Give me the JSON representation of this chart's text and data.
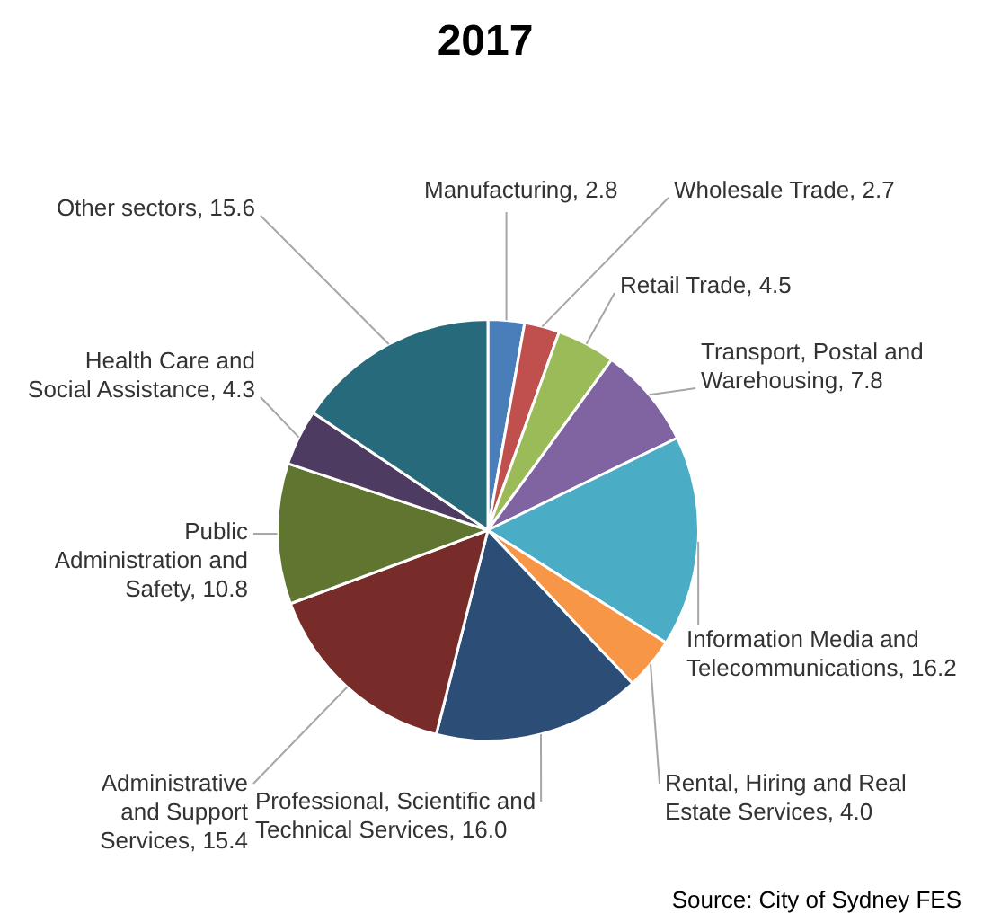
{
  "chart_data": {
    "type": "pie",
    "title": "2017",
    "categories": [
      "Manufacturing",
      "Wholesale Trade",
      "Retail Trade",
      "Transport, Postal and Warehousing",
      "Information Media and Telecommunications",
      "Rental, Hiring and Real Estate Services",
      "Professional, Scientific and Technical Services",
      "Administrative and Support Services",
      "Public Administration and Safety",
      "Health Care and Social Assistance",
      "Other sectors"
    ],
    "values": [
      2.8,
      2.7,
      4.5,
      7.8,
      16.2,
      4.0,
      16.0,
      15.4,
      10.8,
      4.3,
      15.6
    ],
    "value_labels": [
      "2.8",
      "2.7",
      "4.5",
      "7.8",
      "16.2",
      "4.0",
      "16.0",
      "15.4",
      "10.8",
      "4.3",
      "15.6"
    ],
    "colors": [
      "#4a7ebb",
      "#c0504d",
      "#9bbb59",
      "#8064a2",
      "#4bacc6",
      "#f79646",
      "#2c4d75",
      "#772c2a",
      "#5f7530",
      "#4d3b62",
      "#276a7c"
    ],
    "legend": false,
    "annotations": [
      "Source: City of Sydney FES"
    ]
  }
}
